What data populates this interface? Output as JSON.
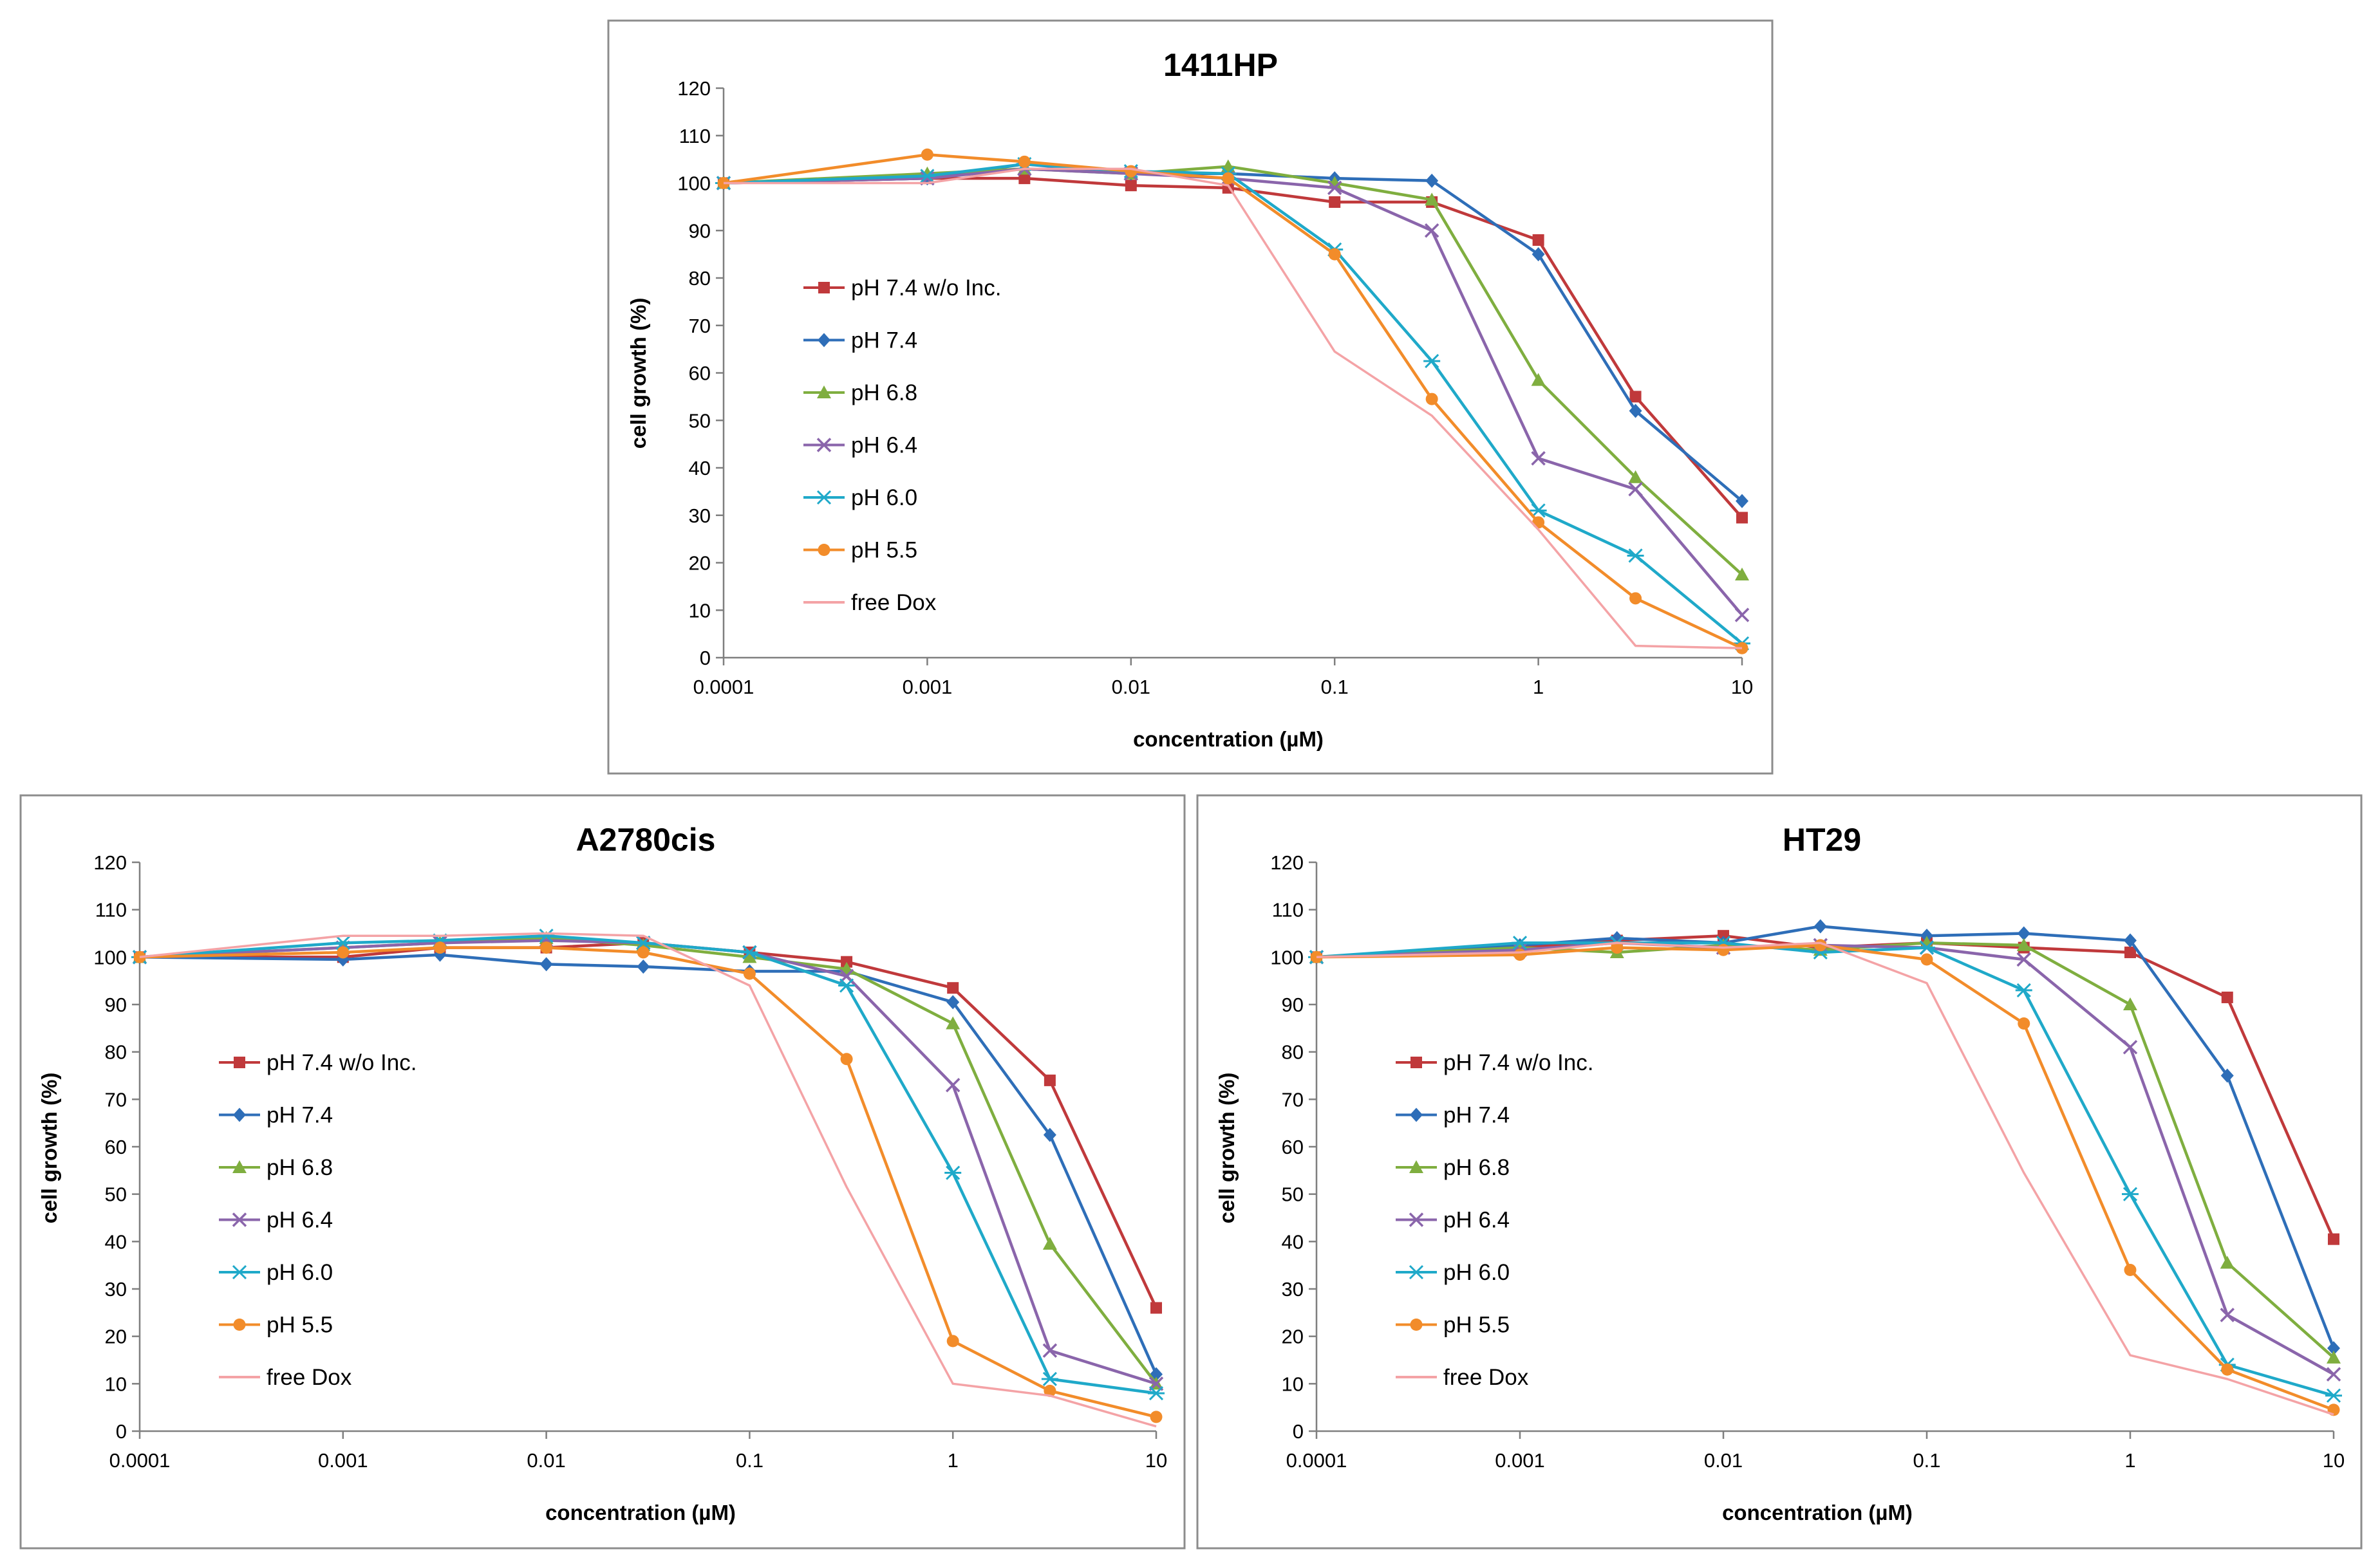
{
  "colors": {
    "pH 7.4 w/o Inc.": "#c0393b",
    "pH 7.4": "#2e6eb8",
    "pH 6.8": "#7fae3f",
    "pH 6.4": "#8a65ab",
    "pH 6.0": "#1fa9c9",
    "pH 5.5": "#f28c2a",
    "free Dox": "#f4a3a6"
  },
  "chart_data": [
    {
      "type": "line",
      "title": "1411HP",
      "xlabel": "concentration (µM)",
      "ylabel": "cell growth (%)",
      "xscale": "log",
      "xlim": [
        0.0001,
        10
      ],
      "ylim": [
        0,
        120
      ],
      "xticks": [
        "0.0001",
        "0.001",
        "0.01",
        "0.1",
        "1",
        "10"
      ],
      "yticks": [
        "0",
        "10",
        "20",
        "30",
        "40",
        "50",
        "60",
        "70",
        "80",
        "90",
        "100",
        "110",
        "120"
      ],
      "grid": false,
      "legend": "left",
      "x": [
        0.0001,
        0.001,
        0.003,
        0.01,
        0.03,
        0.1,
        0.3,
        1,
        3,
        10
      ],
      "series": [
        {
          "name": "pH 7.4 w/o Inc.",
          "marker": "square",
          "values": [
            100,
            101,
            101,
            99.5,
            99,
            96,
            96,
            88,
            55,
            29.5
          ]
        },
        {
          "name": "pH 7.4",
          "marker": "diamond",
          "values": [
            100,
            101,
            104,
            102,
            102,
            101,
            100.5,
            85,
            52,
            33
          ]
        },
        {
          "name": "pH 6.8",
          "marker": "triangle",
          "values": [
            100,
            102,
            103,
            102,
            103.5,
            100,
            96.5,
            58.5,
            38,
            17.5
          ]
        },
        {
          "name": "pH 6.4",
          "marker": "x",
          "values": [
            100,
            101,
            103,
            102,
            101,
            99,
            90,
            42,
            35.5,
            9
          ]
        },
        {
          "name": "pH 6.0",
          "marker": "star",
          "values": [
            100,
            101.5,
            104,
            102.5,
            102,
            86,
            62.5,
            31,
            21.5,
            3
          ]
        },
        {
          "name": "pH 5.5",
          "marker": "circle",
          "values": [
            100,
            106,
            104.5,
            102.5,
            101,
            85,
            54.5,
            28.5,
            12.5,
            2
          ]
        },
        {
          "name": "free Dox",
          "marker": "none",
          "values": [
            100,
            100,
            103,
            103,
            99.5,
            64.5,
            51,
            27,
            2.5,
            2
          ]
        }
      ]
    },
    {
      "type": "line",
      "title": "A2780cis",
      "xlabel": "concentration (µM)",
      "ylabel": "cell growth (%)",
      "xscale": "log",
      "xlim": [
        0.0001,
        10
      ],
      "ylim": [
        0,
        120
      ],
      "xticks": [
        "0.0001",
        "0.001",
        "0.01",
        "0.1",
        "1",
        "10"
      ],
      "yticks": [
        "0",
        "10",
        "20",
        "30",
        "40",
        "50",
        "60",
        "70",
        "80",
        "90",
        "100",
        "110",
        "120"
      ],
      "grid": false,
      "legend": "left",
      "x": [
        0.0001,
        0.001,
        0.003,
        0.01,
        0.03,
        0.1,
        0.3,
        1,
        3,
        10
      ],
      "series": [
        {
          "name": "pH 7.4 w/o Inc.",
          "marker": "square",
          "values": [
            100,
            100,
            102,
            102,
            103,
            101,
            99,
            93.5,
            74,
            26
          ]
        },
        {
          "name": "pH 7.4",
          "marker": "diamond",
          "values": [
            100,
            99.5,
            100.5,
            98.5,
            98,
            97,
            97,
            90.5,
            62.5,
            12
          ]
        },
        {
          "name": "pH 6.8",
          "marker": "triangle",
          "values": [
            100,
            102,
            103,
            104,
            102.5,
            100,
            97.5,
            86,
            39.5,
            10
          ]
        },
        {
          "name": "pH 6.4",
          "marker": "x",
          "values": [
            100,
            102,
            103,
            103.5,
            103,
            101,
            96,
            73,
            17,
            10
          ]
        },
        {
          "name": "pH 6.0",
          "marker": "star",
          "values": [
            100,
            103,
            103.5,
            104.5,
            103,
            101,
            94,
            54.5,
            11,
            8
          ]
        },
        {
          "name": "pH 5.5",
          "marker": "circle",
          "values": [
            100,
            101,
            102,
            102,
            101,
            96.5,
            78.5,
            19,
            8.5,
            3
          ]
        },
        {
          "name": "free Dox",
          "marker": "none",
          "values": [
            100,
            104.5,
            104.5,
            105,
            104.5,
            94,
            51.5,
            10,
            7.5,
            1
          ]
        }
      ]
    },
    {
      "type": "line",
      "title": "HT29",
      "xlabel": "concentration (µM)",
      "ylabel": "cell growth (%)",
      "xscale": "log",
      "xlim": [
        0.0001,
        10
      ],
      "ylim": [
        0,
        120
      ],
      "xticks": [
        "0.0001",
        "0.001",
        "0.01",
        "0.1",
        "1",
        "10"
      ],
      "yticks": [
        "0",
        "10",
        "20",
        "30",
        "40",
        "50",
        "60",
        "70",
        "80",
        "90",
        "100",
        "110",
        "120"
      ],
      "grid": false,
      "legend": "left",
      "x": [
        0.0001,
        0.001,
        0.003,
        0.01,
        0.03,
        0.1,
        0.3,
        1,
        3,
        10
      ],
      "series": [
        {
          "name": "pH 7.4 w/o Inc.",
          "marker": "square",
          "values": [
            100,
            102,
            103.5,
            104.5,
            102,
            103,
            102,
            101,
            91.5,
            40.5
          ]
        },
        {
          "name": "pH 7.4",
          "marker": "diamond",
          "values": [
            100,
            102.5,
            104,
            103,
            106.5,
            104.5,
            105,
            103.5,
            75,
            17.5
          ]
        },
        {
          "name": "pH 6.8",
          "marker": "triangle",
          "values": [
            100,
            102,
            101,
            102.5,
            101.5,
            103,
            102.5,
            90,
            35.5,
            15.5
          ]
        },
        {
          "name": "pH 6.4",
          "marker": "x",
          "values": [
            100,
            101.5,
            103,
            102,
            102.5,
            102,
            99.5,
            81,
            24.5,
            12
          ]
        },
        {
          "name": "pH 6.0",
          "marker": "star",
          "values": [
            100,
            103,
            103,
            103,
            101,
            102,
            93,
            50,
            14,
            7.5
          ]
        },
        {
          "name": "pH 5.5",
          "marker": "circle",
          "values": [
            100,
            100.5,
            102,
            101.5,
            102.5,
            99.5,
            86,
            34,
            13,
            4.5
          ]
        },
        {
          "name": "free Dox",
          "marker": "none",
          "values": [
            100,
            101,
            103,
            102,
            103,
            94.5,
            54.5,
            16,
            11,
            3.5
          ]
        }
      ]
    }
  ]
}
